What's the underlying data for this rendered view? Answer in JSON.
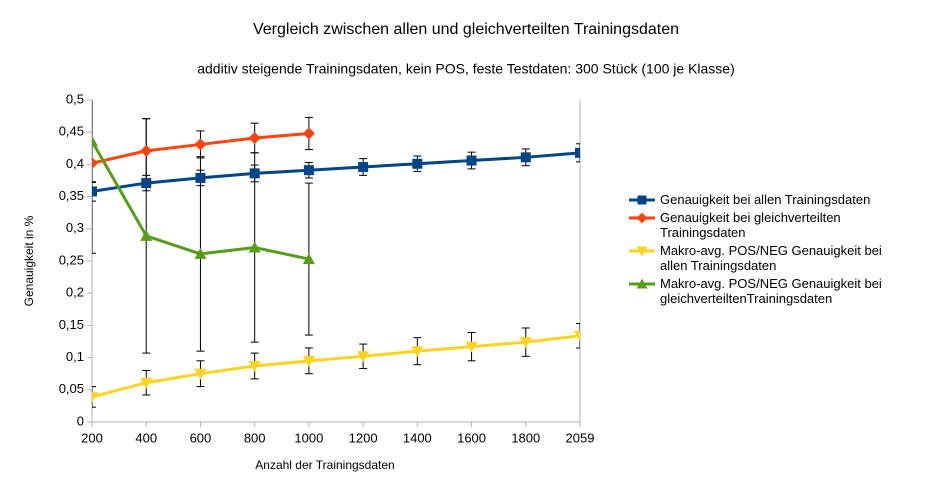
{
  "chart_data": {
    "type": "line",
    "title": "Vergleich zwischen allen und gleichverteilten Trainingsdaten",
    "subtitle": "additiv steigende Trainingsdaten, kein POS, feste Testdaten: 300 Stück (100 je Klasse)",
    "x_label": "Anzahl der Trainingsdaten",
    "y_label": "Genauigkeit in %",
    "categories": [
      "200",
      "400",
      "600",
      "800",
      "1000",
      "1200",
      "1400",
      "1600",
      "1800",
      "2059"
    ],
    "ylim": [
      0,
      0.5
    ],
    "yticks": [
      0,
      {
        "value": 0.05,
        "label": "0,05"
      },
      {
        "value": 0.1,
        "label": "0,1"
      },
      {
        "value": 0.15,
        "label": "0,15"
      },
      {
        "value": 0.2,
        "label": "0,2"
      },
      {
        "value": 0.25,
        "label": "0,25"
      },
      {
        "value": 0.3,
        "label": "0,3"
      },
      {
        "value": 0.35,
        "label": "0,35"
      },
      {
        "value": 0.4,
        "label": "0,4"
      },
      {
        "value": 0.45,
        "label": "0,45"
      },
      {
        "value": 0.5,
        "label": "0,5"
      }
    ],
    "grid": false,
    "legend": "right",
    "series": [
      {
        "name": "Genauigkeit bei allen Trainingsdaten",
        "color": "#004586",
        "marker": "square",
        "values": [
          0.358,
          0.371,
          0.379,
          0.386,
          0.391,
          0.396,
          0.401,
          0.406,
          0.411,
          0.418
        ],
        "errors": [
          0.015,
          0.012,
          0.012,
          0.013,
          0.012,
          0.013,
          0.012,
          0.013,
          0.013,
          0.014
        ]
      },
      {
        "name": "Genauigkeit bei gleichverteilten Trainingsdaten",
        "color": "#ff420e",
        "marker": "diamond",
        "values": [
          0.402,
          0.421,
          0.431,
          0.441,
          0.448,
          null,
          null,
          null,
          null,
          null
        ],
        "errors": [
          0.03,
          0.05,
          0.021,
          0.023,
          0.025,
          null,
          null,
          null,
          null,
          null
        ]
      },
      {
        "name": "Makro-avg. POS/NEG Genauigkeit bei allen Trainingsdaten",
        "color": "#ffd320",
        "marker": "triangle-down",
        "values": [
          0.039,
          0.061,
          0.075,
          0.087,
          0.095,
          0.102,
          0.11,
          0.117,
          0.124,
          0.134
        ],
        "errors": [
          0.016,
          0.019,
          0.02,
          0.02,
          0.02,
          0.019,
          0.021,
          0.022,
          0.022,
          0.019
        ]
      },
      {
        "name": "Makro-avg. POS/NEG Genauigkeit bei gleichverteiltenTrainingsdaten",
        "color": "#579d1c",
        "marker": "triangle-up",
        "values": [
          0.436,
          0.289,
          0.261,
          0.271,
          0.253,
          null,
          null,
          null,
          null,
          null
        ],
        "errors": [
          0.174,
          0.182,
          0.151,
          0.147,
          0.118,
          null,
          null,
          null,
          null,
          null
        ]
      }
    ]
  }
}
